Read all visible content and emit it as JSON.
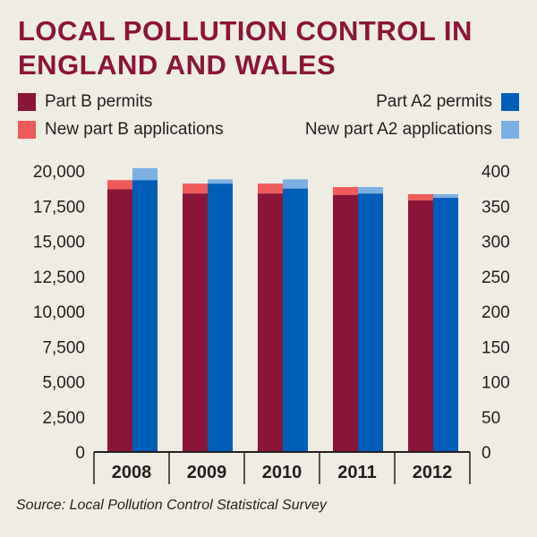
{
  "title_lines": [
    "LOCAL POLLUTION CONTROL IN",
    "ENGLAND AND WALES"
  ],
  "source": "Source: Local Pollution Control Statistical Survey",
  "colors": {
    "part_b": "#8b1538",
    "new_part_b": "#ef5a5a",
    "part_a2": "#005eb8",
    "new_part_a2": "#7cb0e2",
    "title": "#8b1538",
    "background": "#efece3"
  },
  "legend": {
    "part_b": "Part B permits",
    "new_part_b": "New part B applications",
    "part_a2": "Part A2 permits",
    "new_part_a2": "New part A2 applications"
  },
  "chart_data": {
    "type": "bar",
    "categories": [
      "2008",
      "2009",
      "2010",
      "2011",
      "2012"
    ],
    "left_axis": {
      "ylim": [
        0,
        20000
      ],
      "ticks": [
        "0",
        "2,500",
        "5,000",
        "7,500",
        "10,000",
        "12,500",
        "15,000",
        "17,500",
        "20,000"
      ]
    },
    "right_axis": {
      "ylim": [
        0,
        400
      ],
      "ticks": [
        "0",
        "50",
        "100",
        "150",
        "200",
        "250",
        "300",
        "350",
        "400"
      ]
    },
    "series": [
      {
        "name": "Part B permits",
        "axis": "left",
        "stack": "B",
        "values": [
          18700,
          18400,
          18400,
          18300,
          17900
        ]
      },
      {
        "name": "New part B applications",
        "axis": "left",
        "stack": "B",
        "values": [
          650,
          700,
          700,
          550,
          450
        ]
      },
      {
        "name": "Part A2 permits",
        "axis": "right",
        "stack": "A2",
        "values": [
          387,
          382,
          375,
          368,
          362
        ]
      },
      {
        "name": "New part A2 applications",
        "axis": "right",
        "stack": "A2",
        "values": [
          17,
          6,
          13,
          9,
          5
        ]
      }
    ],
    "grid": false,
    "legend_position": "top"
  }
}
